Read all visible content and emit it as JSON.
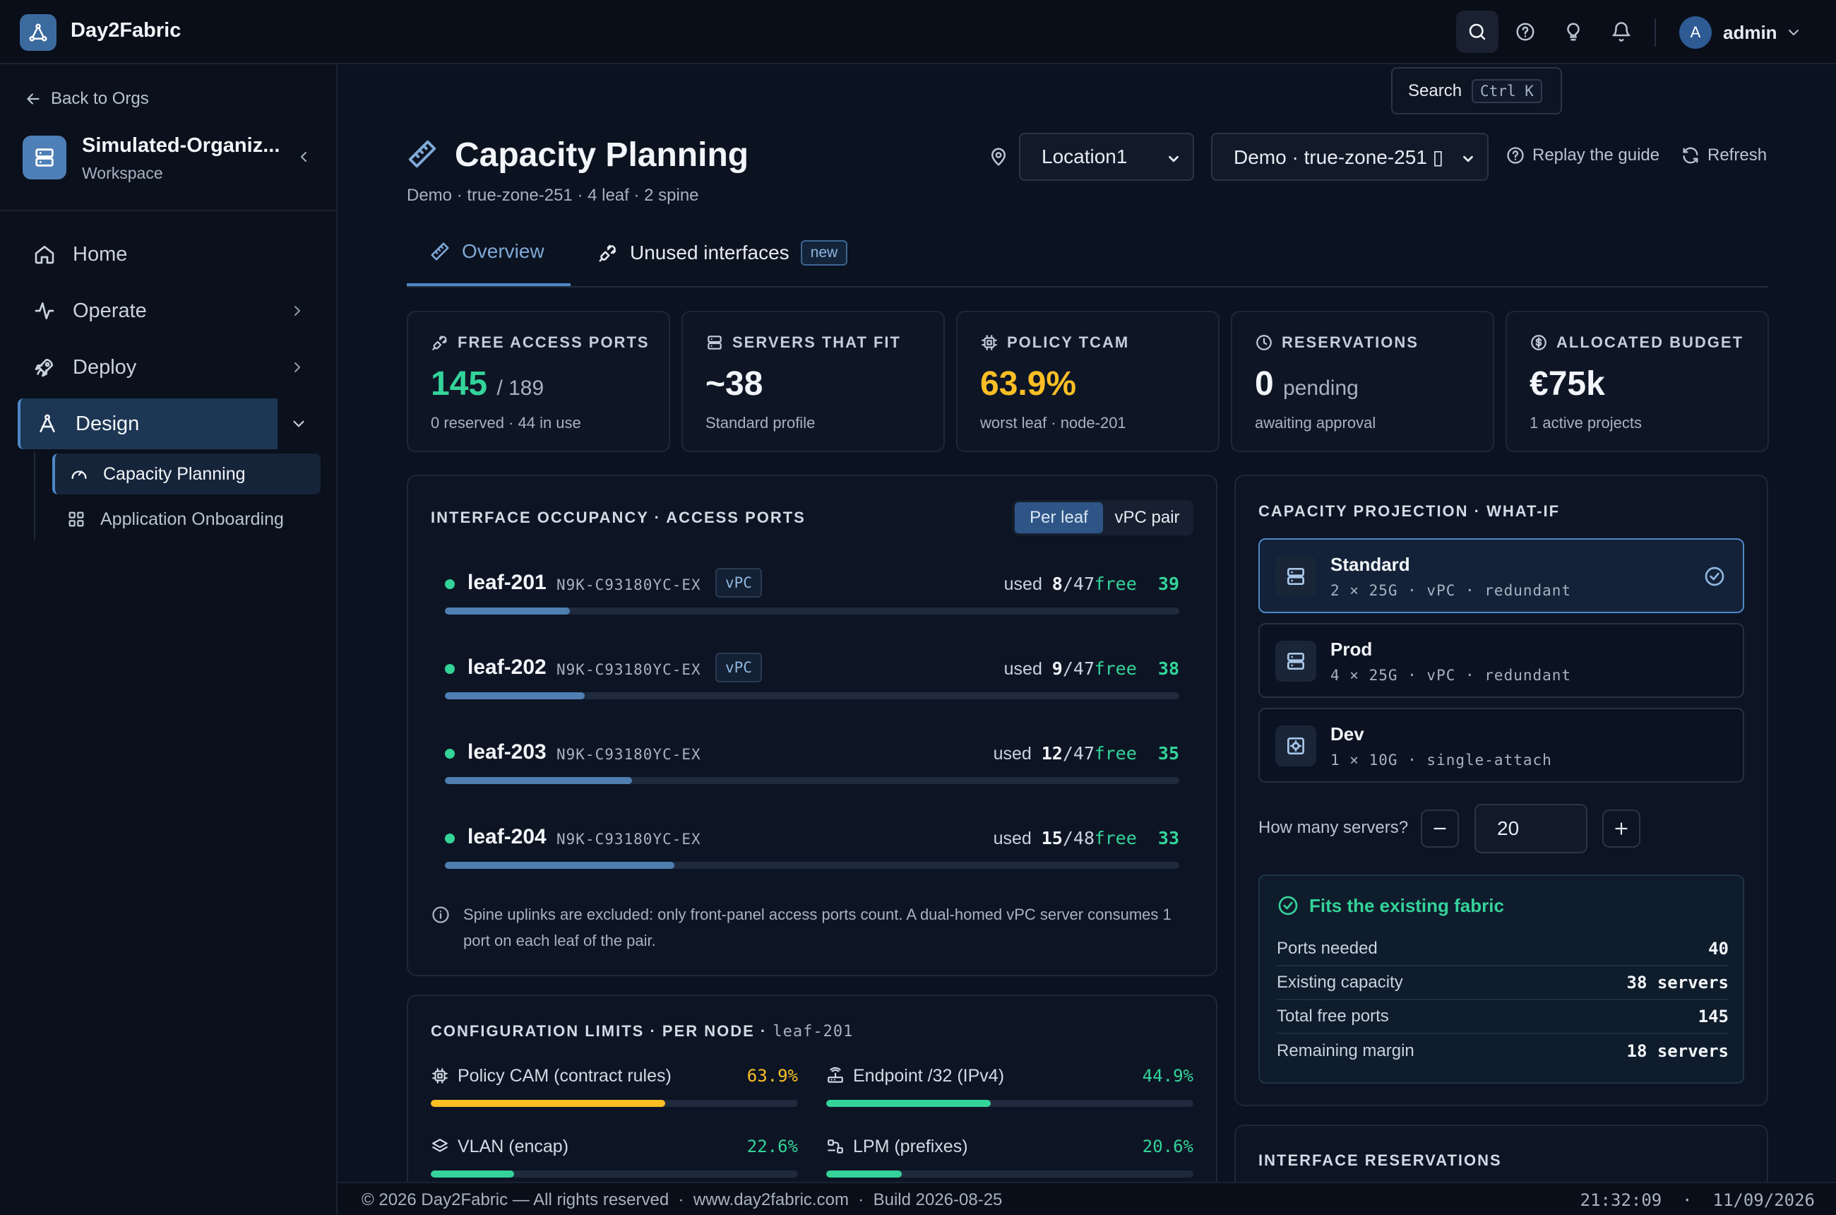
{
  "app": {
    "name": "Day2Fabric"
  },
  "topbar": {
    "user_initial": "A",
    "user_name": "admin",
    "tooltip": {
      "label": "Search",
      "shortcut": "Ctrl K"
    }
  },
  "sidebar": {
    "back_label": "Back to Orgs",
    "org_name": "Simulated-Organiz...",
    "org_sub": "Workspace",
    "nav": [
      {
        "label": "Home"
      },
      {
        "label": "Operate"
      },
      {
        "label": "Deploy"
      },
      {
        "label": "Design"
      }
    ],
    "sub": [
      {
        "label": "Capacity Planning"
      },
      {
        "label": "Application Onboarding"
      }
    ]
  },
  "header": {
    "title": "Capacity Planning",
    "subtitle": "Demo · true-zone-251 · 4 leaf · 2 spine",
    "location": "Location1",
    "zone": "Demo · true-zone-251 ▯",
    "replay_label": "Replay the guide",
    "refresh_label": "Refresh"
  },
  "tabs": [
    {
      "label": "Overview"
    },
    {
      "label": "Unused interfaces",
      "badge": "new"
    }
  ],
  "kpis": [
    {
      "label": "FREE ACCESS PORTS",
      "value": "145",
      "suffix": "/ 189",
      "sub": "0 reserved · 44 in use",
      "color": "#34d399"
    },
    {
      "label": "SERVERS THAT FIT",
      "value": "~38",
      "suffix": "",
      "sub": "Standard profile",
      "color": "#f2f5f9"
    },
    {
      "label": "POLICY TCAM",
      "value": "63.9%",
      "suffix": "",
      "sub": "worst leaf · node-201",
      "color": "#fbbf24"
    },
    {
      "label": "RESERVATIONS",
      "value": "0",
      "suffix": "pending",
      "sub": "awaiting approval",
      "color": "#f2f5f9"
    },
    {
      "label": "ALLOCATED BUDGET",
      "value": "€75k",
      "suffix": "",
      "sub": "1 active projects",
      "color": "#f2f5f9"
    }
  ],
  "occupancy": {
    "title": "INTERFACE OCCUPANCY · ACCESS PORTS",
    "toggle": [
      "Per leaf",
      "vPC pair"
    ],
    "used_label": "used",
    "free_label": "free",
    "leaves": [
      {
        "name": "leaf-201",
        "model": "N9K-C93180YC-EX",
        "vpc": "vPC",
        "used": "8",
        "total": "/47",
        "free": "39",
        "ratio": 0.17
      },
      {
        "name": "leaf-202",
        "model": "N9K-C93180YC-EX",
        "vpc": "vPC",
        "used": "9",
        "total": "/47",
        "free": "38",
        "ratio": 0.19
      },
      {
        "name": "leaf-203",
        "model": "N9K-C93180YC-EX",
        "vpc": "",
        "used": "12",
        "total": "/47",
        "free": "35",
        "ratio": 0.255
      },
      {
        "name": "leaf-204",
        "model": "N9K-C93180YC-EX",
        "vpc": "",
        "used": "15",
        "total": "/48",
        "free": "33",
        "ratio": 0.3125
      }
    ],
    "note": "Spine uplinks are excluded: only front-panel access ports count. A dual-homed vPC server consumes 1 port on each leaf of the pair."
  },
  "limits": {
    "title": "CONFIGURATION LIMITS · PER NODE",
    "node": "leaf-201",
    "items": [
      {
        "label": "Policy CAM (contract rules)",
        "value": "63.9%",
        "ratio": 0.639,
        "color": "#fbbf24"
      },
      {
        "label": "Endpoint /32 (IPv4)",
        "value": "44.9%",
        "ratio": 0.449,
        "color": "#34d399"
      },
      {
        "label": "VLAN (encap)",
        "value": "22.6%",
        "ratio": 0.226,
        "color": "#34d399"
      },
      {
        "label": "LPM (prefixes)",
        "value": "20.6%",
        "ratio": 0.206,
        "color": "#34d399"
      }
    ]
  },
  "projection": {
    "title": "CAPACITY PROJECTION · WHAT-IF",
    "profiles": [
      {
        "name": "Standard",
        "spec": "2 × 25G · vPC · redundant"
      },
      {
        "name": "Prod",
        "spec": "4 × 25G · vPC · redundant"
      },
      {
        "name": "Dev",
        "spec": "1 × 10G · single-attach"
      }
    ],
    "stepper_label": "How many servers?",
    "servers": "20",
    "fit_title": "Fits the existing fabric",
    "rows": [
      {
        "label": "Ports needed",
        "value": "40"
      },
      {
        "label": "Existing capacity",
        "value": "38 servers"
      },
      {
        "label": "Total free ports",
        "value": "145"
      },
      {
        "label": "Remaining margin",
        "value": "18 servers"
      }
    ]
  },
  "reservations": {
    "title": "INTERFACE RESERVATIONS"
  },
  "footer": {
    "left": "© 2026 Day2Fabric — All rights reserved  ·  www.day2fabric.com  ·  Build 2026-08-25",
    "right": "21:32:09  ·  11/09/2026"
  }
}
